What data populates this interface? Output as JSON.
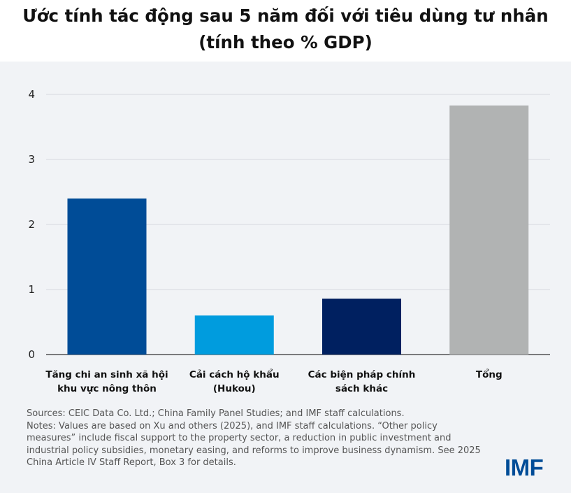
{
  "chart_data": {
    "type": "bar",
    "title": "Ước tính tác động sau 5 năm đối với tiêu dùng tư nhân (tính theo % GDP)",
    "title_lines": [
      "Ước tính tác động sau 5 năm đối với tiêu dùng tư nhân",
      "(tính theo % GDP)"
    ],
    "categories": [
      [
        "Tăng chi an sinh xã hội",
        "khu vực nông thôn"
      ],
      [
        "Cải cách hộ khẩu",
        "(Hukou)"
      ],
      [
        "Các biện pháp chính",
        "sách khác"
      ],
      [
        "Tổng"
      ]
    ],
    "values": [
      2.4,
      0.6,
      0.86,
      3.83
    ],
    "colors": [
      "#004c97",
      "#009cde",
      "#002060",
      "#b1b3b3"
    ],
    "ylim": [
      0,
      4
    ],
    "yticks": [
      "0",
      "1",
      "2",
      "3",
      "4"
    ],
    "xlabel": "",
    "ylabel": "",
    "grid": true
  },
  "footer": {
    "sources": "Sources: CEIC Data Co. Ltd.; China Family Panel Studies; and IMF staff calculations.",
    "notes": "Notes: Values are based on  Xu and others (2025), and IMF staff calculations. “Other policy measures” include fiscal support to the property sector, a reduction in public investment and industrial policy subsidies, monetary easing, and reforms to improve business dynamism. See 2025 China Article IV Staff Report, Box 3 for details.",
    "logo": "IMF"
  }
}
